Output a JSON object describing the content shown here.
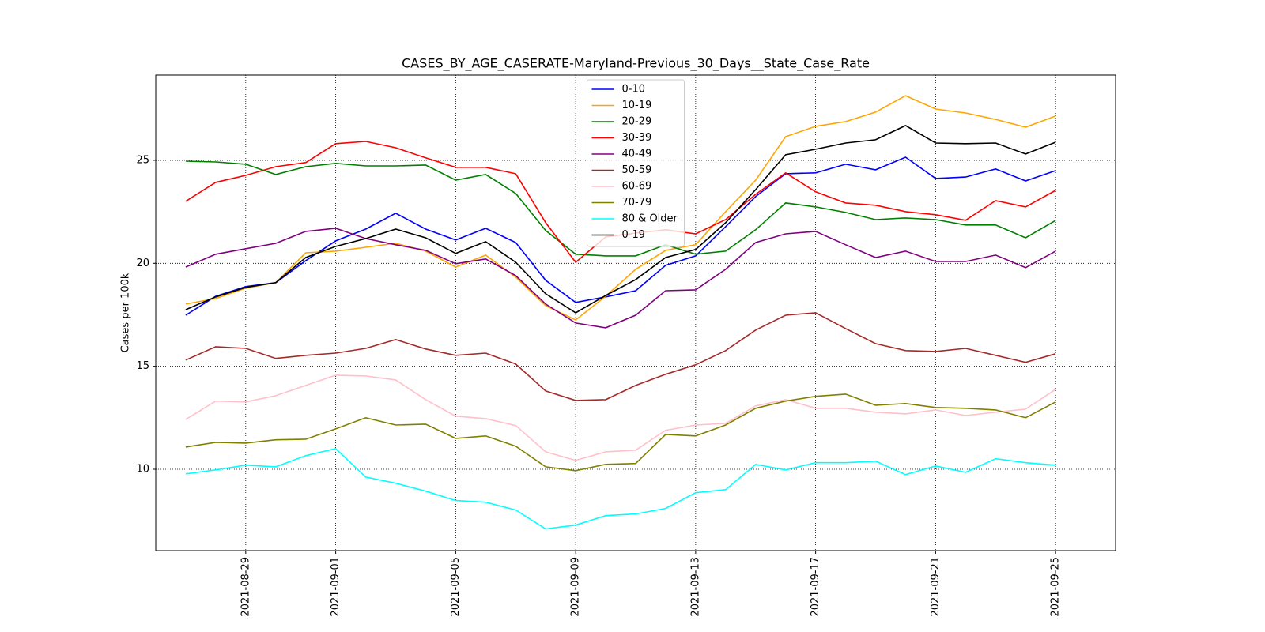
{
  "chart_data": {
    "type": "line",
    "title": "CASES_BY_AGE_CASERATE-Maryland-Previous_30_Days__State_Case_Rate",
    "y_label": "Cases per 100k",
    "x": [
      "2021-08-27",
      "2021-08-28",
      "2021-08-29",
      "2021-08-30",
      "2021-08-31",
      "2021-09-01",
      "2021-09-02",
      "2021-09-03",
      "2021-09-04",
      "2021-09-05",
      "2021-09-06",
      "2021-09-07",
      "2021-09-08",
      "2021-09-09",
      "2021-09-10",
      "2021-09-11",
      "2021-09-12",
      "2021-09-13",
      "2021-09-14",
      "2021-09-15",
      "2021-09-16",
      "2021-09-17",
      "2021-09-18",
      "2021-09-19",
      "2021-09-20",
      "2021-09-21",
      "2021-09-22",
      "2021-09-23",
      "2021-09-24",
      "2021-09-25"
    ],
    "xlim": [
      "2021-08-26",
      "2021-09-27"
    ],
    "xticks": [
      "2021-08-29",
      "2021-09-01",
      "2021-09-05",
      "2021-09-09",
      "2021-09-13",
      "2021-09-17",
      "2021-09-21",
      "2021-09-25"
    ],
    "ylim": [
      6.05,
      29.14
    ],
    "yticks": [
      10,
      15,
      20,
      25
    ],
    "grid": true,
    "legend": "upper center",
    "series": [
      {
        "name": "0-10",
        "color": "#0000ff",
        "values": [
          17.48,
          18.4,
          18.87,
          19.06,
          20.13,
          21.09,
          21.66,
          22.43,
          21.66,
          21.13,
          21.7,
          21.01,
          19.17,
          18.1,
          18.37,
          18.67,
          19.9,
          20.36,
          21.78,
          23.24,
          24.35,
          24.39,
          24.81,
          24.54,
          25.15,
          24.12,
          24.19,
          24.58,
          24.0,
          24.5
        ]
      },
      {
        "name": "10-19",
        "color": "#ffa500",
        "values": [
          18.02,
          18.29,
          18.79,
          19.06,
          20.51,
          20.59,
          20.78,
          20.97,
          20.59,
          19.82,
          20.4,
          19.33,
          17.94,
          17.25,
          18.4,
          19.71,
          20.63,
          20.9,
          22.51,
          24.04,
          26.15,
          26.65,
          26.88,
          27.34,
          28.14,
          27.49,
          27.3,
          26.99,
          26.61,
          27.15
        ]
      },
      {
        "name": "20-29",
        "color": "#008000",
        "values": [
          24.96,
          24.92,
          24.81,
          24.31,
          24.69,
          24.85,
          24.73,
          24.73,
          24.77,
          24.04,
          24.31,
          23.39,
          21.59,
          20.44,
          20.36,
          20.36,
          20.9,
          20.44,
          20.59,
          21.63,
          22.93,
          22.74,
          22.47,
          22.12,
          22.2,
          22.12,
          21.86,
          21.86,
          21.24,
          22.08
        ]
      },
      {
        "name": "30-39",
        "color": "#ff0000",
        "values": [
          23.01,
          23.93,
          24.27,
          24.69,
          24.89,
          25.81,
          25.92,
          25.61,
          25.12,
          24.66,
          24.66,
          24.35,
          21.97,
          20.05,
          21.28,
          21.47,
          21.63,
          21.43,
          22.12,
          23.35,
          24.39,
          23.47,
          22.93,
          22.82,
          22.51,
          22.36,
          22.09,
          23.04,
          22.74,
          23.54
        ]
      },
      {
        "name": "40-49",
        "color": "#800080",
        "values": [
          19.82,
          20.44,
          20.71,
          20.97,
          21.55,
          21.7,
          21.2,
          20.9,
          20.63,
          19.98,
          20.21,
          19.4,
          18.02,
          17.1,
          16.87,
          17.48,
          18.67,
          18.71,
          19.71,
          21.01,
          21.43,
          21.55,
          20.9,
          20.28,
          20.59,
          20.09,
          20.09,
          20.4,
          19.79,
          20.59
        ]
      },
      {
        "name": "50-59",
        "color": "#a52a2a",
        "values": [
          15.3,
          15.95,
          15.87,
          15.38,
          15.53,
          15.64,
          15.87,
          16.3,
          15.84,
          15.53,
          15.64,
          15.11,
          13.8,
          13.34,
          13.38,
          14.07,
          14.61,
          15.07,
          15.76,
          16.76,
          17.48,
          17.6,
          16.83,
          16.1,
          15.76,
          15.72,
          15.87,
          15.53,
          15.19,
          15.61
        ]
      },
      {
        "name": "60-69",
        "color": "#ffc0cb",
        "values": [
          12.42,
          13.31,
          13.27,
          13.57,
          14.07,
          14.57,
          14.53,
          14.34,
          13.38,
          12.58,
          12.46,
          12.12,
          10.85,
          10.43,
          10.85,
          10.93,
          11.89,
          12.15,
          12.23,
          13.08,
          13.38,
          12.96,
          12.96,
          12.77,
          12.69,
          12.88,
          12.61,
          12.77,
          12.92,
          13.88
        ]
      },
      {
        "name": "70-79",
        "color": "#808000",
        "values": [
          11.08,
          11.31,
          11.27,
          11.43,
          11.46,
          11.96,
          12.5,
          12.15,
          12.19,
          11.5,
          11.62,
          11.12,
          10.12,
          9.93,
          10.24,
          10.28,
          11.69,
          11.62,
          12.15,
          12.96,
          13.31,
          13.54,
          13.65,
          13.11,
          13.19,
          13.0,
          12.96,
          12.88,
          12.5,
          13.27
        ]
      },
      {
        "name": "80 & Older",
        "color": "#00ffff",
        "values": [
          9.78,
          9.97,
          10.2,
          10.12,
          10.66,
          11.0,
          9.62,
          9.32,
          8.94,
          8.48,
          8.4,
          8.02,
          7.1,
          7.29,
          7.75,
          7.83,
          8.1,
          8.86,
          9.01,
          10.24,
          9.97,
          10.32,
          10.32,
          10.39,
          9.74,
          10.16,
          9.85,
          10.51,
          10.32,
          10.2
        ]
      },
      {
        "name": "0-19",
        "color": "#000000",
        "values": [
          17.75,
          18.37,
          18.83,
          19.06,
          20.28,
          20.82,
          21.2,
          21.66,
          21.24,
          20.48,
          21.05,
          20.05,
          18.52,
          17.6,
          18.44,
          19.21,
          20.28,
          20.67,
          21.97,
          23.58,
          25.27,
          25.54,
          25.84,
          26.0,
          26.69,
          25.84,
          25.81,
          25.84,
          25.31,
          25.88
        ]
      }
    ]
  }
}
